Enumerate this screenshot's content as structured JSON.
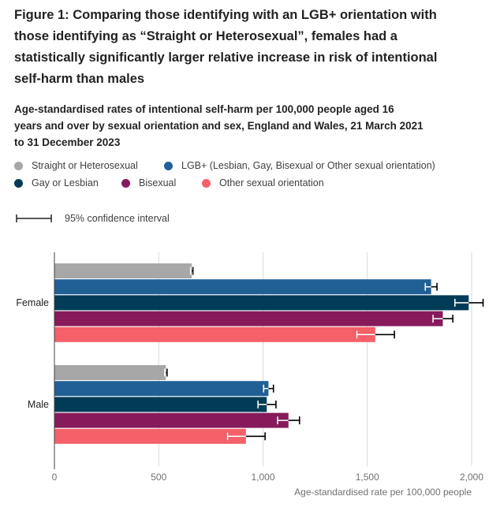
{
  "figure_title": "Figure 1: Comparing those identifying with an LGB+ orientation with those identifying as “Straight or Heterosexual”, females had a statistically significantly larger relative increase in risk of intentional self-harm than males",
  "chart_subtitle": "Age-standardised rates of intentional self-harm per 100,000 people aged 16 years and over by sexual orientation and sex, England and Wales, 21 March 2021 to 31 December 2023",
  "colors": {
    "straight": "#a7a7a7",
    "lgb": "#206095",
    "gay": "#003c57",
    "bisexual": "#871a5b",
    "other": "#f66068",
    "grid": "#d9d9d9",
    "axis": "#414042",
    "errorbar": "#000000",
    "errorbar_dark": "#ffffff"
  },
  "legend": {
    "items": [
      {
        "label": "Straight or Heterosexual",
        "color": "#a7a7a7"
      },
      {
        "label": "LGB+ (Lesbian, Gay, Bisexual or Other sexual orientation)",
        "color": "#206095"
      },
      {
        "label": "Gay or Lesbian",
        "color": "#003c57"
      },
      {
        "label": "Bisexual",
        "color": "#871a5b"
      },
      {
        "label": "Other sexual orientation",
        "color": "#f66068"
      }
    ],
    "ci_label": "95% confidence interval"
  },
  "chart_data": {
    "type": "bar",
    "orientation": "horizontal",
    "title": "Figure 1: Comparing those identifying with an LGB+ orientation with those identifying as “Straight or Heterosexual”, females had a statistically significantly larger relative increase in risk of intentional self-harm than males",
    "subtitle": "Age-standardised rates of intentional self-harm per 100,000 people aged 16 years and over by sexual orientation and sex, England and Wales, 21 March 2021 to 31 December 2023",
    "categories": [
      "Female",
      "Male"
    ],
    "xlabel": "Age-standardised rate per 100,000 people",
    "ylabel": "",
    "xlim": [
      0,
      2000
    ],
    "xticks": [
      0,
      500,
      1000,
      1500,
      2000
    ],
    "xtick_labels": [
      "0",
      "500",
      "1,000",
      "1,500",
      "2,000"
    ],
    "grid": true,
    "legend_position": "top",
    "series": [
      {
        "name": "Straight or Heterosexual",
        "color": "#a7a7a7",
        "values": [
          658,
          534
        ],
        "ci_low": [
          652,
          528
        ],
        "ci_high": [
          664,
          540
        ]
      },
      {
        "name": "LGB+ (Lesbian, Gay, Bisexual or Other sexual orientation)",
        "color": "#206095",
        "values": [
          1806,
          1026
        ],
        "ci_low": [
          1778,
          1003
        ],
        "ci_high": [
          1834,
          1050
        ]
      },
      {
        "name": "Gay or Lesbian",
        "color": "#003c57",
        "values": [
          1986,
          1018
        ],
        "ci_low": [
          1920,
          976
        ],
        "ci_high": [
          2055,
          1062
        ]
      },
      {
        "name": "Bisexual",
        "color": "#871a5b",
        "values": [
          1862,
          1122
        ],
        "ci_low": [
          1815,
          1070
        ],
        "ci_high": [
          1910,
          1175
        ]
      },
      {
        "name": "Other sexual orientation",
        "color": "#f66068",
        "values": [
          1538,
          918
        ],
        "ci_low": [
          1450,
          830
        ],
        "ci_high": [
          1630,
          1010
        ]
      }
    ]
  }
}
